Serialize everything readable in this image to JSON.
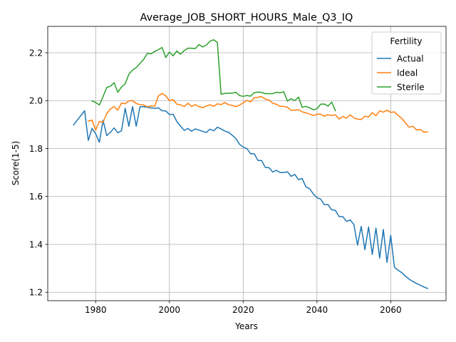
{
  "chart_data": {
    "type": "line",
    "title": "Average_JOB_SHORT_HOURS_Male_Q3_IQ",
    "xlabel": "Years",
    "ylabel": "Score(1-5)",
    "xlim": [
      1967,
      2075
    ],
    "ylim": [
      1.165,
      2.31
    ],
    "xticks": [
      1980,
      2000,
      2020,
      2040,
      2060
    ],
    "yticks": [
      1.2,
      1.4,
      1.6,
      1.8,
      2.0,
      2.2
    ],
    "xtick_labels": [
      "1980",
      "2000",
      "2020",
      "2040",
      "2060"
    ],
    "ytick_labels": [
      "1.2",
      "1.4",
      "1.6",
      "1.8",
      "2.0",
      "2.2"
    ],
    "grid": true,
    "legend": {
      "title": "Fertility",
      "position": "top-right"
    },
    "series": [
      {
        "name": "Actual",
        "color": "#1f77b4",
        "points": [
          [
            1974,
            1.899
          ],
          [
            1977,
            1.958
          ],
          [
            1978,
            1.834
          ],
          [
            1979,
            1.884
          ],
          [
            1980,
            1.862
          ],
          [
            1981,
            1.826
          ],
          [
            1982,
            1.918
          ],
          [
            1983,
            1.854
          ],
          [
            1984,
            1.868
          ],
          [
            1985,
            1.886
          ],
          [
            1986,
            1.866
          ],
          [
            1987,
            1.874
          ],
          [
            1988,
            1.968
          ],
          [
            1989,
            1.893
          ],
          [
            1990,
            1.975
          ],
          [
            1991,
            1.893
          ],
          [
            1992,
            1.974
          ],
          [
            1993,
            1.975
          ],
          [
            1994,
            1.972
          ],
          [
            1995,
            1.97
          ],
          [
            1996,
            1.968
          ],
          [
            1997,
            1.97
          ],
          [
            1998,
            1.958
          ],
          [
            1999,
            1.957
          ],
          [
            2000,
            1.942
          ],
          [
            2001,
            1.943
          ],
          [
            2002,
            1.913
          ],
          [
            2003,
            1.894
          ],
          [
            2004,
            1.876
          ],
          [
            2005,
            1.884
          ],
          [
            2006,
            1.872
          ],
          [
            2007,
            1.882
          ],
          [
            2008,
            1.877
          ],
          [
            2009,
            1.872
          ],
          [
            2010,
            1.867
          ],
          [
            2011,
            1.881
          ],
          [
            2012,
            1.874
          ],
          [
            2013,
            1.889
          ],
          [
            2014,
            1.882
          ],
          [
            2015,
            1.873
          ],
          [
            2016,
            1.868
          ],
          [
            2017,
            1.856
          ],
          [
            2018,
            1.842
          ],
          [
            2019,
            1.818
          ],
          [
            2020,
            1.806
          ],
          [
            2021,
            1.8
          ],
          [
            2022,
            1.778
          ],
          [
            2023,
            1.778
          ],
          [
            2024,
            1.75
          ],
          [
            2025,
            1.75
          ],
          [
            2026,
            1.721
          ],
          [
            2027,
            1.72
          ],
          [
            2028,
            1.702
          ],
          [
            2029,
            1.709
          ],
          [
            2030,
            1.7
          ],
          [
            2031,
            1.7
          ],
          [
            2032,
            1.703
          ],
          [
            2033,
            1.684
          ],
          [
            2034,
            1.692
          ],
          [
            2035,
            1.67
          ],
          [
            2036,
            1.675
          ],
          [
            2037,
            1.64
          ],
          [
            2038,
            1.633
          ],
          [
            2039,
            1.611
          ],
          [
            2040,
            1.595
          ],
          [
            2041,
            1.589
          ],
          [
            2042,
            1.566
          ],
          [
            2043,
            1.566
          ],
          [
            2044,
            1.544
          ],
          [
            2045,
            1.542
          ],
          [
            2046,
            1.516
          ],
          [
            2047,
            1.516
          ],
          [
            2048,
            1.496
          ],
          [
            2049,
            1.502
          ],
          [
            2050,
            1.484
          ],
          [
            2051,
            1.397
          ],
          [
            2052,
            1.475
          ],
          [
            2053,
            1.378
          ],
          [
            2054,
            1.473
          ],
          [
            2055,
            1.358
          ],
          [
            2056,
            1.468
          ],
          [
            2057,
            1.343
          ],
          [
            2058,
            1.462
          ],
          [
            2059,
            1.325
          ],
          [
            2060,
            1.438
          ],
          [
            2061,
            1.305
          ],
          [
            2062,
            1.292
          ],
          [
            2063,
            1.282
          ],
          [
            2064,
            1.267
          ],
          [
            2065,
            1.255
          ],
          [
            2066,
            1.245
          ],
          [
            2067,
            1.237
          ],
          [
            2068,
            1.23
          ],
          [
            2069,
            1.222
          ],
          [
            2070,
            1.216
          ]
        ]
      },
      {
        "name": "Ideal",
        "color": "#ff7f0e",
        "points": [
          [
            1978,
            1.914
          ],
          [
            1979,
            1.919
          ],
          [
            1980,
            1.877
          ],
          [
            1981,
            1.913
          ],
          [
            1982,
            1.91
          ],
          [
            1983,
            1.946
          ],
          [
            1984,
            1.965
          ],
          [
            1985,
            1.975
          ],
          [
            1986,
            1.96
          ],
          [
            1987,
            1.99
          ],
          [
            1988,
            1.987
          ],
          [
            1989,
            1.999
          ],
          [
            1990,
            2.0
          ],
          [
            1991,
            1.988
          ],
          [
            1992,
            1.983
          ],
          [
            1993,
            1.982
          ],
          [
            1994,
            1.974
          ],
          [
            1995,
            1.978
          ],
          [
            1996,
            1.977
          ],
          [
            1997,
            2.019
          ],
          [
            1998,
            2.03
          ],
          [
            1999,
            2.02
          ],
          [
            2000,
            2.0
          ],
          [
            2001,
            2.004
          ],
          [
            2002,
            1.985
          ],
          [
            2003,
            1.983
          ],
          [
            2004,
            1.975
          ],
          [
            2005,
            1.989
          ],
          [
            2006,
            1.976
          ],
          [
            2007,
            1.983
          ],
          [
            2008,
            1.975
          ],
          [
            2009,
            1.971
          ],
          [
            2010,
            1.977
          ],
          [
            2011,
            1.983
          ],
          [
            2012,
            1.976
          ],
          [
            2013,
            1.987
          ],
          [
            2014,
            1.983
          ],
          [
            2015,
            1.992
          ],
          [
            2016,
            1.983
          ],
          [
            2017,
            1.98
          ],
          [
            2018,
            1.975
          ],
          [
            2019,
            1.981
          ],
          [
            2020,
            1.991
          ],
          [
            2021,
            2.001
          ],
          [
            2022,
            1.995
          ],
          [
            2023,
            2.012
          ],
          [
            2024,
            2.014
          ],
          [
            2025,
            2.017
          ],
          [
            2026,
            2.006
          ],
          [
            2027,
            2.003
          ],
          [
            2028,
            1.989
          ],
          [
            2029,
            1.985
          ],
          [
            2030,
            1.976
          ],
          [
            2031,
            1.976
          ],
          [
            2032,
            1.972
          ],
          [
            2033,
            1.96
          ],
          [
            2034,
            1.96
          ],
          [
            2035,
            1.962
          ],
          [
            2036,
            1.953
          ],
          [
            2037,
            1.949
          ],
          [
            2038,
            1.944
          ],
          [
            2039,
            1.938
          ],
          [
            2040,
            1.943
          ],
          [
            2041,
            1.943
          ],
          [
            2042,
            1.935
          ],
          [
            2043,
            1.941
          ],
          [
            2044,
            1.938
          ],
          [
            2045,
            1.941
          ],
          [
            2046,
            1.923
          ],
          [
            2047,
            1.934
          ],
          [
            2048,
            1.927
          ],
          [
            2049,
            1.941
          ],
          [
            2050,
            1.928
          ],
          [
            2051,
            1.923
          ],
          [
            2052,
            1.921
          ],
          [
            2053,
            1.935
          ],
          [
            2054,
            1.932
          ],
          [
            2055,
            1.95
          ],
          [
            2056,
            1.937
          ],
          [
            2057,
            1.957
          ],
          [
            2058,
            1.952
          ],
          [
            2059,
            1.96
          ],
          [
            2060,
            1.951
          ],
          [
            2061,
            1.953
          ],
          [
            2062,
            1.938
          ],
          [
            2063,
            1.926
          ],
          [
            2064,
            1.907
          ],
          [
            2065,
            1.889
          ],
          [
            2066,
            1.893
          ],
          [
            2067,
            1.878
          ],
          [
            2068,
            1.88
          ],
          [
            2069,
            1.868
          ],
          [
            2070,
            1.87
          ]
        ]
      },
      {
        "name": "Sterile",
        "color": "#2ca02c",
        "points": [
          [
            1979,
            1.999
          ],
          [
            1980,
            1.992
          ],
          [
            1981,
            1.982
          ],
          [
            1982,
            2.017
          ],
          [
            1983,
            2.055
          ],
          [
            1984,
            2.06
          ],
          [
            1985,
            2.075
          ],
          [
            1986,
            2.035
          ],
          [
            1987,
            2.057
          ],
          [
            1988,
            2.07
          ],
          [
            1989,
            2.11
          ],
          [
            1990,
            2.128
          ],
          [
            1991,
            2.138
          ],
          [
            1992,
            2.155
          ],
          [
            1993,
            2.172
          ],
          [
            1994,
            2.197
          ],
          [
            1995,
            2.195
          ],
          [
            1996,
            2.205
          ],
          [
            1997,
            2.213
          ],
          [
            1998,
            2.222
          ],
          [
            1999,
            2.18
          ],
          [
            2000,
            2.203
          ],
          [
            2001,
            2.187
          ],
          [
            2002,
            2.207
          ],
          [
            2003,
            2.194
          ],
          [
            2004,
            2.209
          ],
          [
            2005,
            2.219
          ],
          [
            2006,
            2.219
          ],
          [
            2007,
            2.217
          ],
          [
            2008,
            2.234
          ],
          [
            2009,
            2.224
          ],
          [
            2010,
            2.232
          ],
          [
            2011,
            2.248
          ],
          [
            2012,
            2.254
          ],
          [
            2013,
            2.243
          ],
          [
            2014,
            2.027
          ],
          [
            2015,
            2.03
          ],
          [
            2016,
            2.031
          ],
          [
            2017,
            2.031
          ],
          [
            2018,
            2.035
          ],
          [
            2019,
            2.021
          ],
          [
            2020,
            2.018
          ],
          [
            2021,
            2.021
          ],
          [
            2022,
            2.019
          ],
          [
            2023,
            2.033
          ],
          [
            2024,
            2.036
          ],
          [
            2025,
            2.034
          ],
          [
            2026,
            2.029
          ],
          [
            2027,
            2.029
          ],
          [
            2028,
            2.029
          ],
          [
            2029,
            2.035
          ],
          [
            2030,
            2.033
          ],
          [
            2031,
            2.037
          ],
          [
            2032,
            1.998
          ],
          [
            2033,
            2.008
          ],
          [
            2034,
            2.0
          ],
          [
            2035,
            2.015
          ],
          [
            2036,
            1.972
          ],
          [
            2037,
            1.976
          ],
          [
            2038,
            1.97
          ],
          [
            2039,
            1.962
          ],
          [
            2040,
            1.966
          ],
          [
            2041,
            1.985
          ],
          [
            2042,
            1.986
          ],
          [
            2043,
            1.977
          ],
          [
            2044,
            1.994
          ],
          [
            2045,
            1.958
          ]
        ]
      }
    ]
  }
}
